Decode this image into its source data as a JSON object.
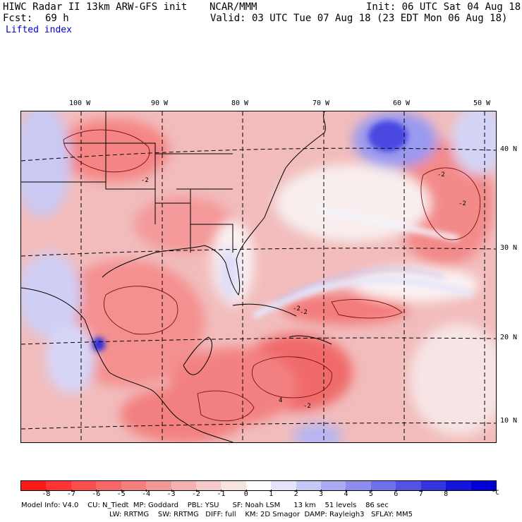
{
  "header": {
    "title": "HIWC Radar II 13km ARW-GFS init",
    "org": "NCAR/MMM",
    "init": "Init: 06 UTC Sat 04 Aug 18",
    "fcst_label": "Fcst:",
    "fcst_value": "69 h",
    "valid": "Valid: 03 UTC Tue 07 Aug 18 (23 EDT Mon 06 Aug 18)",
    "field": "Lifted index"
  },
  "lon_labels": [
    "100 W",
    "90 W",
    "80 W",
    "70 W",
    "60 W",
    "50 W"
  ],
  "lat_labels": [
    "40 N",
    "30 N",
    "20 N",
    "10 N"
  ],
  "contour_labels": [
    "-2",
    "-2",
    "-2",
    "-2",
    "-2",
    "-2",
    "4"
  ],
  "colorbar": {
    "ticks": [
      "-8",
      "-7",
      "-6",
      "-5",
      "-4",
      "-3",
      "-2",
      "-1",
      "0",
      "1",
      "2",
      "3",
      "4",
      "5",
      "6",
      "7",
      "8"
    ],
    "unit": "°C",
    "colors": [
      "#ff1a1a",
      "#ff3535",
      "#fb4f4f",
      "#f76767",
      "#f47f7f",
      "#f29898",
      "#f3b1b1",
      "#f5caca",
      "#f8e3e3",
      "#ffffff",
      "#e4e4fb",
      "#c8c8f7",
      "#aaaaf2",
      "#8d8ded",
      "#7070e8",
      "#5252e3",
      "#3434df",
      "#1414da",
      "#0000d6"
    ]
  },
  "footer": {
    "line1": "Model Info: V4.0    CU: N_Tiedt  MP: Goddard    PBL: YSU      SF: Noah LSM      13 km    51 levels    86 sec",
    "line2": "LW: RRTMG    SW: RRTMG   DIFF: full    KM: 2D Smagor  DAMP: Rayleigh3   SFLAY: MM5"
  }
}
